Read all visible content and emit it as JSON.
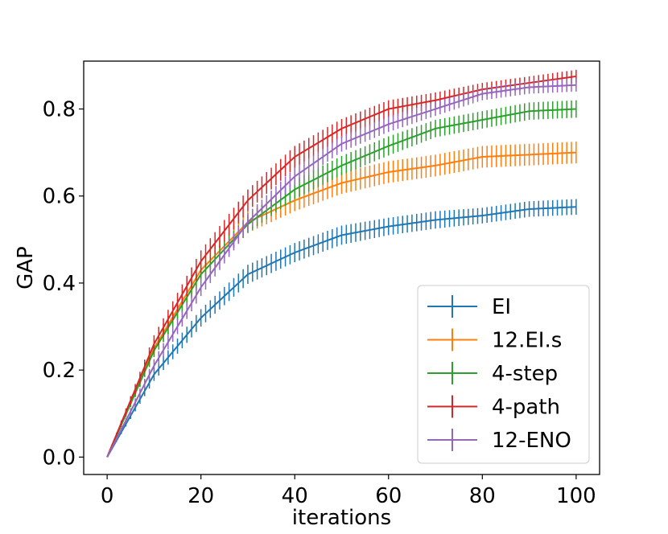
{
  "chart_data": {
    "type": "line",
    "title": "",
    "xlabel": "iterations",
    "ylabel": "GAP",
    "xlim": [
      -5,
      105
    ],
    "ylim": [
      -0.04,
      0.91
    ],
    "xticks": [
      0,
      20,
      40,
      60,
      80,
      100
    ],
    "xtick_labels": [
      "0",
      "20",
      "40",
      "60",
      "80",
      "100"
    ],
    "yticks": [
      0.0,
      0.2,
      0.4,
      0.6,
      0.8
    ],
    "ytick_labels": [
      "0.0",
      "0.2",
      "0.4",
      "0.6",
      "0.8"
    ],
    "grid": false,
    "legend_position": "lower-right",
    "errorbar_every": 1,
    "x": [
      0,
      10,
      20,
      30,
      40,
      50,
      60,
      70,
      80,
      90,
      100
    ],
    "series": [
      {
        "name": "EI",
        "color": "#1f77b4",
        "values": [
          0.0,
          0.19,
          0.32,
          0.42,
          0.47,
          0.51,
          0.53,
          0.545,
          0.555,
          0.57,
          0.575
        ],
        "err": [
          0.0,
          0.015,
          0.02,
          0.022,
          0.022,
          0.022,
          0.02,
          0.02,
          0.018,
          0.018,
          0.018
        ]
      },
      {
        "name": "12.EI.s",
        "color": "#ff7f0e",
        "values": [
          0.0,
          0.25,
          0.43,
          0.54,
          0.59,
          0.63,
          0.655,
          0.67,
          0.69,
          0.695,
          0.7
        ],
        "err": [
          0.0,
          0.02,
          0.025,
          0.025,
          0.025,
          0.025,
          0.025,
          0.025,
          0.025,
          0.025,
          0.025
        ]
      },
      {
        "name": "4-step",
        "color": "#2ca02c",
        "values": [
          0.0,
          0.245,
          0.42,
          0.535,
          0.615,
          0.67,
          0.715,
          0.755,
          0.775,
          0.795,
          0.8
        ],
        "err": [
          0.0,
          0.015,
          0.02,
          0.02,
          0.022,
          0.022,
          0.022,
          0.02,
          0.02,
          0.02,
          0.02
        ]
      },
      {
        "name": "4-path",
        "color": "#d62728",
        "values": [
          0.0,
          0.26,
          0.45,
          0.59,
          0.69,
          0.755,
          0.8,
          0.82,
          0.845,
          0.86,
          0.875
        ],
        "err": [
          0.0,
          0.02,
          0.025,
          0.025,
          0.025,
          0.022,
          0.02,
          0.018,
          0.015,
          0.015,
          0.015
        ]
      },
      {
        "name": "12-ENO",
        "color": "#9467bd",
        "values": [
          0.0,
          0.21,
          0.39,
          0.54,
          0.645,
          0.72,
          0.765,
          0.8,
          0.835,
          0.85,
          0.855
        ],
        "err": [
          0.0,
          0.015,
          0.02,
          0.02,
          0.02,
          0.018,
          0.018,
          0.016,
          0.015,
          0.015,
          0.015
        ]
      }
    ]
  }
}
